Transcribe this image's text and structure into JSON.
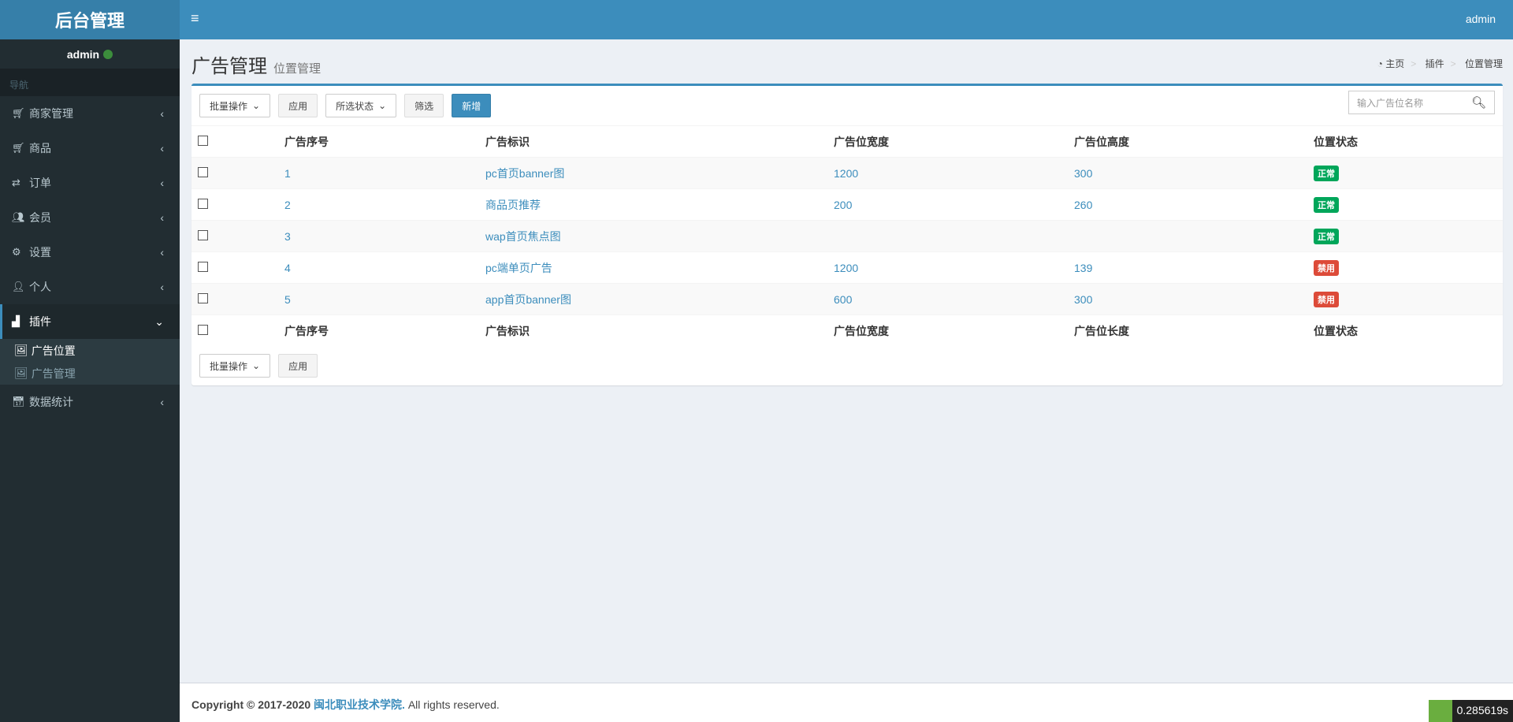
{
  "app_title": "后台管理",
  "user": {
    "name": "admin",
    "status_color": "#3c8d3c"
  },
  "nav_header": "导航",
  "menu": [
    {
      "label": "商家管理",
      "icon": "cart-icon"
    },
    {
      "label": "商品",
      "icon": "cart-icon"
    },
    {
      "label": "订单",
      "icon": "exchange-icon"
    },
    {
      "label": "会员",
      "icon": "users-icon"
    },
    {
      "label": "设置",
      "icon": "cogs-icon"
    },
    {
      "label": "个人",
      "icon": "user-icon"
    },
    {
      "label": "插件",
      "icon": "puzzle-icon",
      "expanded": true,
      "children": [
        {
          "label": "广告位置",
          "icon": "image-icon",
          "active": true
        },
        {
          "label": "广告管理",
          "icon": "image-icon"
        }
      ]
    },
    {
      "label": "数据统计",
      "icon": "calendar-icon"
    }
  ],
  "topbar": {
    "user": "admin"
  },
  "page": {
    "title": "广告管理",
    "subtitle": "位置管理"
  },
  "breadcrumb": [
    "主页",
    "插件",
    "位置管理"
  ],
  "toolbar": {
    "bulk": "批量操作",
    "apply": "应用",
    "status": "所选状态",
    "filter": "筛选",
    "add": "新增",
    "search_placeholder": "输入广告位名称"
  },
  "table": {
    "headers": [
      "广告序号",
      "广告标识",
      "广告位宽度",
      "广告位高度",
      "位置状态"
    ],
    "footer_headers": [
      "广告序号",
      "广告标识",
      "广告位宽度",
      "广告位长度",
      "位置状态"
    ],
    "rows": [
      {
        "id": "1",
        "name": "pc首页banner图",
        "width": "1200",
        "height": "300",
        "status": "正常",
        "color": "#00a65a"
      },
      {
        "id": "2",
        "name": "商品页推荐",
        "width": "200",
        "height": "260",
        "status": "正常",
        "color": "#00a65a"
      },
      {
        "id": "3",
        "name": "wap首页焦点图",
        "width": "",
        "height": "",
        "status": "正常",
        "color": "#00a65a"
      },
      {
        "id": "4",
        "name": "pc端单页广告",
        "width": "1200",
        "height": "139",
        "status": "禁用",
        "color": "#dd4b39"
      },
      {
        "id": "5",
        "name": "app首页banner图",
        "width": "600",
        "height": "300",
        "status": "禁用",
        "color": "#dd4b39"
      }
    ]
  },
  "footer": {
    "copyright": "Copyright © 2017-2020",
    "org": "闽北职业技术学院.",
    "rights": "All rights reserved."
  },
  "timer": "0.285619s"
}
